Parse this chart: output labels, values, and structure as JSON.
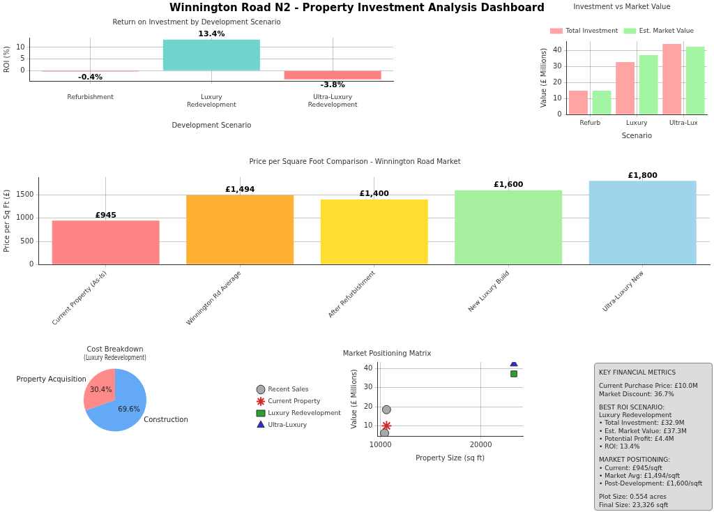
{
  "chart_data": [
    {
      "type": "bar",
      "title": "Return on Investment by Development Scenario",
      "xlabel": "Development Scenario",
      "ylabel": "ROI (%)",
      "annotations": [
        "Winnington Road N2 - Property Investment Analysis Dashboard"
      ],
      "categories": [
        "Refurbishment",
        "Luxury Redevelopment",
        "Ultra-Luxury Redevelopment"
      ],
      "values": [
        -0.4,
        13.4,
        -3.8
      ],
      "colors": [
        "#ff8080",
        "#6fd5cc",
        "#ff8080"
      ],
      "value_labels": [
        "-0.4%",
        "13.4%",
        "-3.8%"
      ],
      "ylim": [
        -4.6,
        14.2
      ],
      "yticks": [
        0,
        5,
        10
      ],
      "grid": true
    },
    {
      "type": "bar",
      "title": "Investment vs Market Value",
      "xlabel": "Scenario",
      "ylabel": "Value (£ Millions)",
      "categories": [
        "Refurb",
        "Luxury",
        "Ultra-Lux"
      ],
      "series": [
        {
          "name": "Total Investment",
          "color": "#ffa3a3",
          "values": [
            15.0,
            32.9,
            44.2
          ]
        },
        {
          "name": "Est. Market Value",
          "color": "#a3f5a3",
          "values": [
            14.9,
            37.3,
            42.5
          ]
        }
      ],
      "ylim": [
        0,
        46
      ],
      "yticks": [
        0,
        10,
        20,
        30,
        40
      ],
      "grid": true,
      "legend": "top"
    },
    {
      "type": "bar",
      "title": "Price per Square Foot Comparison - Winnington Road Market",
      "ylabel": "Price per Sq Ft (£)",
      "categories": [
        "Current Property (As-Is)",
        "Winnington Rd Average",
        "After Refurbishment",
        "New Luxury Build",
        "Ultra-Luxury New"
      ],
      "values": [
        945,
        1494,
        1400,
        1600,
        1800
      ],
      "colors": [
        "#ff8585",
        "#ffb133",
        "#ffdd33",
        "#a6ef9e",
        "#9fd5ec"
      ],
      "value_labels": [
        "£945",
        "£1,494",
        "£1,400",
        "£1,600",
        "£1,800"
      ],
      "ylim": [
        0,
        1880
      ],
      "yticks": [
        0,
        500,
        1000,
        1500
      ],
      "grid": true
    },
    {
      "type": "pie",
      "title": "Cost Breakdown\n(Luxury Redevelopment)",
      "categories": [
        "Property Acquisition",
        "Construction"
      ],
      "values": [
        30.4,
        69.6
      ],
      "colors": [
        "#ff8a8a",
        "#63a9f5"
      ],
      "value_labels": [
        "30.4%",
        "69.6%"
      ]
    },
    {
      "type": "scatter",
      "title": "Market Positioning Matrix",
      "xlabel": "Property Size (sq ft)",
      "ylabel": "Value (£ Millions)",
      "series": [
        {
          "name": "Recent Sales",
          "color": "#a9a9a9",
          "marker": "circle",
          "x": [
            10600,
            10400
          ],
          "values": [
            18.5,
            6.2
          ]
        },
        {
          "name": "Current Property",
          "color": "#d62728",
          "marker": "cross",
          "x": [
            10600
          ],
          "values": [
            10.0
          ]
        },
        {
          "name": "Luxury Redevelopment",
          "color": "#2ca02c",
          "marker": "square",
          "x": [
            23300
          ],
          "values": [
            37.3
          ]
        },
        {
          "name": "Ultra-Luxury",
          "color": "#2b2bd9",
          "marker": "triangle",
          "x": [
            23300
          ],
          "values": [
            42.5
          ]
        }
      ],
      "xlim": [
        9700,
        24200
      ],
      "xticks": [
        10000,
        20000
      ],
      "ylim": [
        4.7,
        43.5
      ],
      "yticks": [
        10,
        20,
        30,
        40
      ],
      "grid": true,
      "legend": "left"
    },
    {
      "type": "other",
      "annotations": [
        "KEY FINANCIAL METRICS",
        "Current Purchase Price: £10.0M\nMarket Discount: 36.7%",
        "BEST ROI SCENARIO:\nLuxury Redevelopment\n• Total Investment: £32.9M\n• Est. Market Value: £37.3M\n• Potential Profit: £4.4M\n• ROI: 13.4%",
        "MARKET POSITIONING:\n• Current: £945/sqft\n• Market Avg: £1,494/sqft\n• Post-Development: £1,600/sqft",
        "Plot Size: 0.554 acres\nFinal Size: 23,326 sqft"
      ]
    }
  ]
}
